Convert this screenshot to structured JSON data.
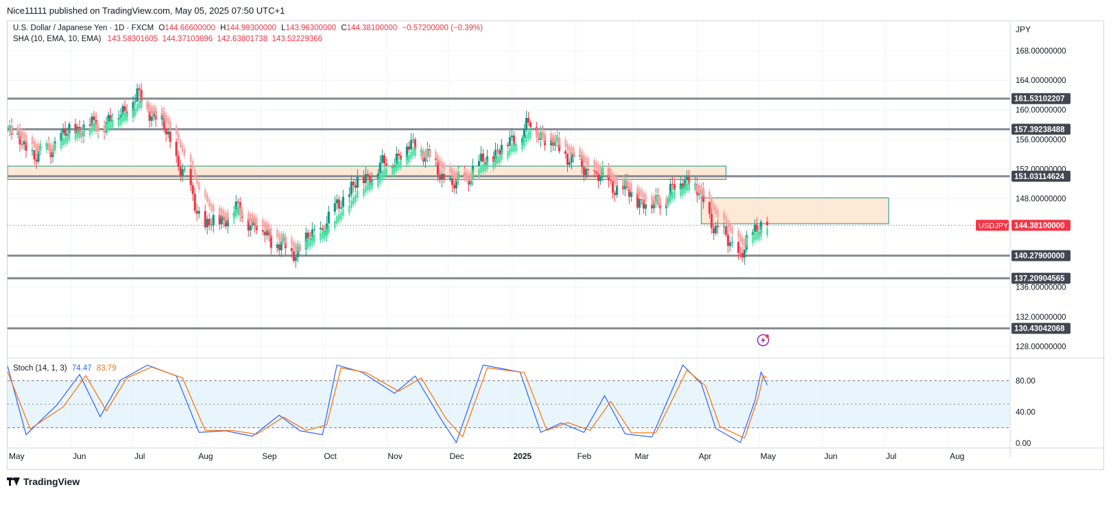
{
  "header": {
    "publisher": "Nice11111 published on TradingView.com, May 05, 2025 07:50 UTC+1"
  },
  "legend": {
    "symbol": "U.S. Dollar / Japanese Yen · 1D · FXCM",
    "open_label": "O",
    "open": "144.66600000",
    "high_label": "H",
    "high": "144.99300000",
    "low_label": "L",
    "low": "143.96300000",
    "close_label": "C",
    "close": "144.38100000",
    "change": "−0.57200000 (−0.39%)",
    "indicator": "SHA (10, EMA, 10, EMA)",
    "indicator_values": "143.58301605  144.37103896  142.63801738  143.52229366",
    "stoch_label": "Stoch (14, 1, 3)",
    "stoch_k": "74.47",
    "stoch_d": "83.79"
  },
  "price_axis": {
    "currency": "JPY",
    "ticks": [
      "168.00000000",
      "164.00000000",
      "160.00000000",
      "156.00000000",
      "152.00000000",
      "148.00000000",
      "136.00000000",
      "132.00000000",
      "128.00000000"
    ],
    "current_symbol": "USDJPY",
    "current_price": "144.38100000"
  },
  "stoch_axis": {
    "ticks": [
      "80.00",
      "40.00",
      "0.00"
    ]
  },
  "time_axis": {
    "labels": [
      "May",
      "Jun",
      "Jul",
      "Aug",
      "Sep",
      "Oct",
      "Nov",
      "Dec",
      "2025",
      "Feb",
      "Mar",
      "Apr",
      "May",
      "Jun",
      "Jul",
      "Aug"
    ]
  },
  "footer": {
    "brand": "TradingView"
  },
  "colors": {
    "bull": "#089981",
    "bear": "#f23645",
    "sha_bull": "#4fe0a6",
    "sha_bear": "#f7a5a5",
    "level": "#868993",
    "zone_fill": "#fde2c8",
    "zone_border": "#089981",
    "stoch_k": "#2962ff",
    "stoch_d": "#ff6d00",
    "stoch_band": "#e3f2fd"
  },
  "chart_data": [
    {
      "type": "candlestick",
      "title": "U.S. Dollar / Japanese Yen · 1D · FXCM",
      "x_range": [
        "2024-05-01",
        "2025-08-31"
      ],
      "ylim": [
        126.5,
        172.0
      ],
      "key_points": [
        {
          "date": "2024-05-01",
          "price": 157.5
        },
        {
          "date": "2024-05-15",
          "price": 153.5
        },
        {
          "date": "2024-06-01",
          "price": 157.2
        },
        {
          "date": "2024-06-20",
          "price": 158.5
        },
        {
          "date": "2024-07-03",
          "price": 161.8
        },
        {
          "date": "2024-07-15",
          "price": 158.2
        },
        {
          "date": "2024-08-05",
          "price": 144.0
        },
        {
          "date": "2024-08-20",
          "price": 146.5
        },
        {
          "date": "2024-09-16",
          "price": 140.5
        },
        {
          "date": "2024-10-01",
          "price": 144.0
        },
        {
          "date": "2024-10-15",
          "price": 149.5
        },
        {
          "date": "2024-11-15",
          "price": 155.5
        },
        {
          "date": "2024-12-03",
          "price": 149.5
        },
        {
          "date": "2025-01-10",
          "price": 158.0
        },
        {
          "date": "2025-02-05",
          "price": 152.0
        },
        {
          "date": "2025-03-10",
          "price": 147.0
        },
        {
          "date": "2025-03-28",
          "price": 151.0
        },
        {
          "date": "2025-04-10",
          "price": 144.0
        },
        {
          "date": "2025-04-22",
          "price": 140.3
        },
        {
          "date": "2025-05-02",
          "price": 145.0
        },
        {
          "date": "2025-05-05",
          "price": 144.381
        }
      ],
      "horizontal_levels": [
        {
          "label": "161.53102207",
          "price": 161.53102207
        },
        {
          "label": "157.39238488",
          "price": 157.39238488
        },
        {
          "label": "151.03114624",
          "price": 151.03114624
        },
        {
          "label": "140.27900000",
          "price": 140.279
        },
        {
          "label": "137.20904565",
          "price": 137.20904565
        },
        {
          "label": "130.43042068",
          "price": 130.43042068
        }
      ],
      "zones": [
        {
          "from": "2024-05-01",
          "to": "2025-04-15",
          "price_low": 150.6,
          "price_high": 152.4
        },
        {
          "from": "2025-04-03",
          "to": "2025-07-03",
          "price_low": 144.6,
          "price_high": 148.1
        }
      ]
    },
    {
      "type": "line",
      "title": "Stoch (14, 1, 3)",
      "ylim": [
        -6,
        108
      ],
      "bands": [
        20,
        50,
        80
      ],
      "series": [
        {
          "name": "74.47",
          "points": [
            {
              "date": "2024-05-01",
              "v": 95
            },
            {
              "date": "2024-05-10",
              "v": 15
            },
            {
              "date": "2024-05-25",
              "v": 45
            },
            {
              "date": "2024-06-05",
              "v": 92
            },
            {
              "date": "2024-06-15",
              "v": 30
            },
            {
              "date": "2024-06-25",
              "v": 85
            },
            {
              "date": "2024-07-08",
              "v": 98
            },
            {
              "date": "2024-07-22",
              "v": 90
            },
            {
              "date": "2024-08-02",
              "v": 10
            },
            {
              "date": "2024-08-15",
              "v": 20
            },
            {
              "date": "2024-08-28",
              "v": 5
            },
            {
              "date": "2024-09-10",
              "v": 40
            },
            {
              "date": "2024-09-20",
              "v": 12
            },
            {
              "date": "2024-10-01",
              "v": 15
            },
            {
              "date": "2024-10-08",
              "v": 98
            },
            {
              "date": "2024-10-20",
              "v": 95
            },
            {
              "date": "2024-11-05",
              "v": 60
            },
            {
              "date": "2024-11-15",
              "v": 90
            },
            {
              "date": "2024-11-28",
              "v": 25
            },
            {
              "date": "2024-12-05",
              "v": 5
            },
            {
              "date": "2024-12-18",
              "v": 98
            },
            {
              "date": "2025-01-05",
              "v": 95
            },
            {
              "date": "2025-01-15",
              "v": 10
            },
            {
              "date": "2025-01-25",
              "v": 30
            },
            {
              "date": "2025-02-05",
              "v": 10
            },
            {
              "date": "2025-02-15",
              "v": 65
            },
            {
              "date": "2025-02-25",
              "v": 8
            },
            {
              "date": "2025-03-10",
              "v": 12
            },
            {
              "date": "2025-03-25",
              "v": 98
            },
            {
              "date": "2025-04-03",
              "v": 80
            },
            {
              "date": "2025-04-10",
              "v": 15
            },
            {
              "date": "2025-04-22",
              "v": 5
            },
            {
              "date": "2025-04-29",
              "v": 50
            },
            {
              "date": "2025-05-02",
              "v": 95
            },
            {
              "date": "2025-05-05",
              "v": 74.47
            }
          ]
        },
        {
          "name": "83.79",
          "points": [
            {
              "date": "2024-05-01",
              "v": 90
            },
            {
              "date": "2024-05-12",
              "v": 20
            },
            {
              "date": "2024-05-28",
              "v": 45
            },
            {
              "date": "2024-06-08",
              "v": 88
            },
            {
              "date": "2024-06-18",
              "v": 40
            },
            {
              "date": "2024-06-28",
              "v": 85
            },
            {
              "date": "2024-07-10",
              "v": 96
            },
            {
              "date": "2024-07-25",
              "v": 85
            },
            {
              "date": "2024-08-05",
              "v": 15
            },
            {
              "date": "2024-08-18",
              "v": 18
            },
            {
              "date": "2024-08-30",
              "v": 10
            },
            {
              "date": "2024-09-12",
              "v": 35
            },
            {
              "date": "2024-09-23",
              "v": 15
            },
            {
              "date": "2024-10-03",
              "v": 25
            },
            {
              "date": "2024-10-10",
              "v": 95
            },
            {
              "date": "2024-10-22",
              "v": 92
            },
            {
              "date": "2024-11-07",
              "v": 65
            },
            {
              "date": "2024-11-18",
              "v": 85
            },
            {
              "date": "2024-11-30",
              "v": 30
            },
            {
              "date": "2024-12-08",
              "v": 10
            },
            {
              "date": "2024-12-20",
              "v": 95
            },
            {
              "date": "2025-01-07",
              "v": 92
            },
            {
              "date": "2025-01-18",
              "v": 15
            },
            {
              "date": "2025-01-28",
              "v": 28
            },
            {
              "date": "2025-02-08",
              "v": 15
            },
            {
              "date": "2025-02-18",
              "v": 55
            },
            {
              "date": "2025-02-28",
              "v": 12
            },
            {
              "date": "2025-03-12",
              "v": 15
            },
            {
              "date": "2025-03-27",
              "v": 92
            },
            {
              "date": "2025-04-05",
              "v": 75
            },
            {
              "date": "2025-04-12",
              "v": 20
            },
            {
              "date": "2025-04-24",
              "v": 8
            },
            {
              "date": "2025-05-01",
              "v": 60
            },
            {
              "date": "2025-05-03",
              "v": 88
            },
            {
              "date": "2025-05-05",
              "v": 83.79
            }
          ]
        }
      ]
    }
  ]
}
